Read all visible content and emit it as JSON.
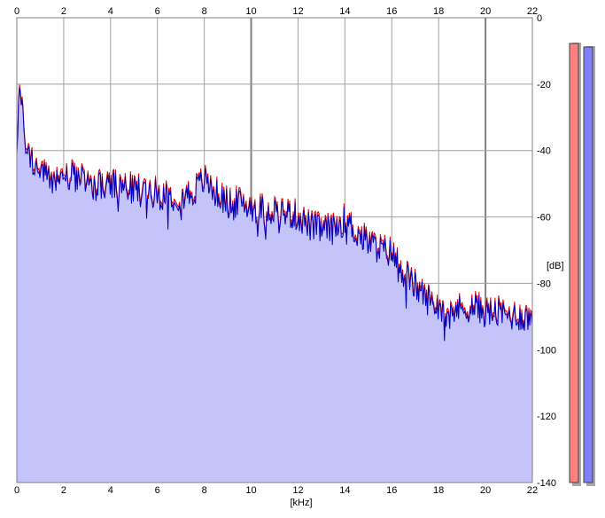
{
  "chart_data": {
    "type": "area",
    "xlabel": "[kHz]",
    "ylabel": "[dB]",
    "xlim": [
      0,
      22
    ],
    "ylim": [
      -140,
      0
    ],
    "x_ticks": [
      "0",
      "2",
      "4",
      "6",
      "8",
      "10",
      "12",
      "14",
      "16",
      "18",
      "20",
      "22"
    ],
    "y_ticks": [
      "0",
      "-20",
      "-40",
      "-60",
      "-80",
      "-100",
      "-120",
      "-140"
    ],
    "grid": true,
    "colors": {
      "fill": "#c4c4fa",
      "right_channel_line": "#e00000",
      "left_channel_line": "#0000c0",
      "grid": "#a0a0a0",
      "grid_major": "#808080",
      "meter_right": "#ff8080",
      "meter_left": "#8080ff"
    },
    "series": [
      {
        "x": [
          0.0,
          0.1,
          0.2,
          0.3,
          0.4,
          0.5,
          0.6,
          0.8,
          1.0,
          1.2,
          1.5,
          2.0,
          2.5,
          3.0,
          3.5,
          4.0,
          4.5,
          5.0,
          5.5,
          6.0,
          6.5,
          7.0,
          7.5,
          8.0,
          8.5,
          9.0,
          9.5,
          10.0,
          10.5,
          11.0,
          11.5,
          12.0,
          12.5,
          13.0,
          13.5,
          14.0,
          14.5,
          15.0,
          15.5,
          16.0,
          16.5,
          17.0,
          17.5,
          18.0,
          18.5,
          19.0,
          19.5,
          20.0,
          20.5,
          21.0,
          21.5,
          22.0
        ],
        "values": [
          -38,
          -20,
          -26,
          -33,
          -37,
          -40,
          -42,
          -44,
          -45,
          -47,
          -48,
          -47,
          -47,
          -49,
          -50,
          -50,
          -50,
          -51,
          -51,
          -52,
          -53,
          -53,
          -52,
          -48,
          -52,
          -55,
          -55,
          -56,
          -57,
          -57,
          -58,
          -59,
          -62,
          -63,
          -63,
          -60,
          -64,
          -67,
          -69,
          -70,
          -76,
          -80,
          -84,
          -86,
          -87,
          -87,
          -86,
          -88,
          -88,
          -89,
          -89,
          -90
        ]
      },
      {
        "x": [
          0.0,
          0.1,
          0.2,
          0.3,
          0.4,
          0.5,
          0.6,
          0.8,
          1.0,
          1.2,
          1.5,
          2.0,
          2.5,
          3.0,
          3.5,
          4.0,
          4.5,
          5.0,
          5.5,
          6.0,
          6.5,
          7.0,
          7.5,
          8.0,
          8.5,
          9.0,
          9.5,
          10.0,
          10.5,
          11.0,
          11.5,
          12.0,
          12.5,
          13.0,
          13.5,
          14.0,
          14.5,
          15.0,
          15.5,
          16.0,
          16.5,
          17.0,
          17.5,
          18.0,
          18.5,
          19.0,
          19.5,
          20.0,
          20.5,
          21.0,
          21.5,
          22.0
        ],
        "values": [
          -39,
          -21,
          -27,
          -34,
          -38,
          -41,
          -43,
          -45,
          -46,
          -48,
          -49,
          -48,
          -48,
          -50,
          -51,
          -51,
          -51,
          -52,
          -52,
          -53,
          -54,
          -54,
          -53,
          -49,
          -53,
          -56,
          -56,
          -57,
          -58,
          -58,
          -59,
          -60,
          -63,
          -64,
          -64,
          -61,
          -65,
          -68,
          -70,
          -71,
          -77,
          -81,
          -85,
          -87,
          -88,
          -88,
          -87,
          -89,
          -89,
          -90,
          -90,
          -91
        ]
      }
    ],
    "meters": {
      "right_level": 0.99,
      "left_level": 0.99
    }
  }
}
